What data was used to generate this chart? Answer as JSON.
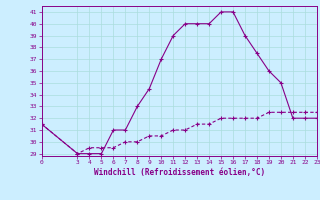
{
  "xlabel": "Windchill (Refroidissement éolien,°C)",
  "bg_color": "#cceeff",
  "line_color": "#880088",
  "grid_color": "#aadddd",
  "x_hours": [
    0,
    3,
    4,
    5,
    6,
    7,
    8,
    9,
    10,
    11,
    12,
    13,
    14,
    15,
    16,
    17,
    18,
    19,
    20,
    21,
    22,
    23
  ],
  "windchill": [
    31.5,
    29,
    29,
    29,
    31,
    31,
    33,
    34.5,
    37,
    39,
    40,
    40,
    40,
    41,
    41,
    39,
    37.5,
    36,
    35,
    32,
    32,
    32
  ],
  "temperature": [
    31.5,
    29,
    29.5,
    29.5,
    29.5,
    30,
    30,
    30.5,
    30.5,
    31,
    31,
    31.5,
    31.5,
    32,
    32,
    32,
    32,
    32.5,
    32.5,
    32.5,
    32.5,
    32.5
  ],
  "ylim": [
    28.8,
    41.5
  ],
  "xlim": [
    0,
    23
  ],
  "yticks": [
    29,
    30,
    31,
    32,
    33,
    34,
    35,
    36,
    37,
    38,
    39,
    40,
    41
  ],
  "xticks": [
    0,
    3,
    4,
    5,
    6,
    7,
    8,
    9,
    10,
    11,
    12,
    13,
    14,
    15,
    16,
    17,
    18,
    19,
    20,
    21,
    22,
    23
  ]
}
